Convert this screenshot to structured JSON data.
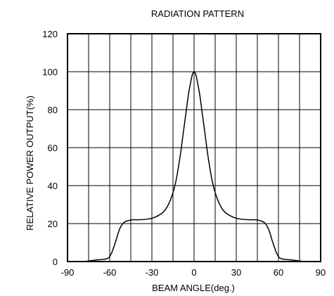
{
  "chart_data": {
    "type": "line",
    "title": "RADIATION PATTERN",
    "xlabel": "BEAM ANGLE(deg.)",
    "ylabel": "RELATIVE POWER OUTPUT(%)",
    "xlim": [
      -90,
      90
    ],
    "ylim": [
      0,
      120
    ],
    "x_ticks": [
      -90,
      -60,
      -30,
      0,
      30,
      60,
      90
    ],
    "y_ticks": [
      0,
      20,
      40,
      60,
      80,
      100,
      120
    ],
    "x_gridlines": [
      -90,
      -75,
      -60,
      -45,
      -30,
      -15,
      0,
      15,
      30,
      45,
      60,
      75,
      90
    ],
    "y_gridlines": [
      0,
      20,
      40,
      60,
      80,
      100,
      120
    ],
    "grid": true,
    "series": [
      {
        "color": "#000000",
        "x": [
          -78,
          -70,
          -62,
          -59,
          -56,
          -53,
          -50,
          -47,
          -44,
          -40,
          -35,
          -30,
          -26,
          -22,
          -19,
          -16,
          -13,
          -10,
          -8,
          -6,
          -4,
          -2,
          -1,
          0,
          1,
          2,
          4,
          6,
          8,
          10,
          13,
          16,
          19,
          22,
          26,
          30,
          35,
          40,
          44,
          47,
          50,
          53,
          56,
          59,
          62,
          70,
          78
        ],
        "y": [
          0,
          0.8,
          1.5,
          4,
          10,
          17,
          20.5,
          21.5,
          22,
          22,
          22.2,
          22.8,
          24,
          26,
          29,
          34,
          42,
          55,
          66,
          77,
          88,
          96,
          99,
          100,
          99,
          96,
          88,
          77,
          66,
          55,
          42,
          34,
          29,
          26,
          24,
          22.8,
          22.2,
          22,
          22,
          21.5,
          20.5,
          17,
          10,
          4,
          1.5,
          0.8,
          0
        ]
      }
    ]
  }
}
